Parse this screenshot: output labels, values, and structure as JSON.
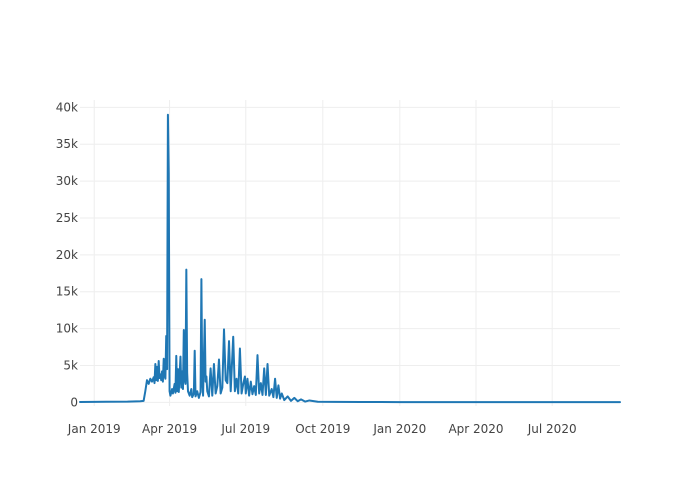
{
  "chart_data": {
    "type": "line",
    "title": "",
    "xlabel": "",
    "ylabel": "",
    "grid": true,
    "legend": "none",
    "xlim": [
      "2018-12-15",
      "2020-09-20"
    ],
    "ylim": [
      -500,
      41000
    ],
    "x_ticks": [
      {
        "value": "2019-01-01",
        "label": "Jan 2019"
      },
      {
        "value": "2019-04-01",
        "label": "Apr 2019"
      },
      {
        "value": "2019-07-01",
        "label": "Jul 2019"
      },
      {
        "value": "2019-10-01",
        "label": "Oct 2019"
      },
      {
        "value": "2020-01-01",
        "label": "Jan 2020"
      },
      {
        "value": "2020-04-01",
        "label": "Apr 2020"
      },
      {
        "value": "2020-07-01",
        "label": "Jul 2020"
      }
    ],
    "y_ticks": [
      {
        "value": 0,
        "label": "0"
      },
      {
        "value": 5000,
        "label": "5k"
      },
      {
        "value": 10000,
        "label": "10k"
      },
      {
        "value": 15000,
        "label": "15k"
      },
      {
        "value": 20000,
        "label": "20k"
      },
      {
        "value": 25000,
        "label": "25k"
      },
      {
        "value": 30000,
        "label": "30k"
      },
      {
        "value": 35000,
        "label": "35k"
      },
      {
        "value": 40000,
        "label": "40k"
      }
    ],
    "series": [
      {
        "color": "#1f77b4",
        "points": [
          [
            "2018-12-15",
            50
          ],
          [
            "2019-01-15",
            80
          ],
          [
            "2019-02-10",
            100
          ],
          [
            "2019-02-25",
            150
          ],
          [
            "2019-03-01",
            200
          ],
          [
            "2019-03-03",
            1500
          ],
          [
            "2019-03-05",
            3000
          ],
          [
            "2019-03-07",
            2500
          ],
          [
            "2019-03-09",
            3200
          ],
          [
            "2019-03-11",
            2800
          ],
          [
            "2019-03-13",
            3400
          ],
          [
            "2019-03-14",
            2600
          ],
          [
            "2019-03-15",
            5200
          ],
          [
            "2019-03-16",
            3000
          ],
          [
            "2019-03-17",
            4800
          ],
          [
            "2019-03-18",
            2900
          ],
          [
            "2019-03-19",
            5600
          ],
          [
            "2019-03-20",
            3300
          ],
          [
            "2019-03-21",
            3800
          ],
          [
            "2019-03-22",
            3000
          ],
          [
            "2019-03-23",
            4200
          ],
          [
            "2019-03-24",
            2800
          ],
          [
            "2019-03-25",
            5900
          ],
          [
            "2019-03-26",
            3600
          ],
          [
            "2019-03-27",
            3200
          ],
          [
            "2019-03-28",
            9000
          ],
          [
            "2019-03-29",
            4500
          ],
          [
            "2019-03-30",
            39000
          ],
          [
            "2019-03-31",
            31000
          ],
          [
            "2019-04-01",
            1500
          ],
          [
            "2019-04-02",
            900
          ],
          [
            "2019-04-04",
            1800
          ],
          [
            "2019-04-05",
            1200
          ],
          [
            "2019-04-07",
            2500
          ],
          [
            "2019-04-08",
            1300
          ],
          [
            "2019-04-09",
            6300
          ],
          [
            "2019-04-10",
            1500
          ],
          [
            "2019-04-11",
            4500
          ],
          [
            "2019-04-12",
            1400
          ],
          [
            "2019-04-14",
            6200
          ],
          [
            "2019-04-15",
            2000
          ],
          [
            "2019-04-16",
            4200
          ],
          [
            "2019-04-17",
            1800
          ],
          [
            "2019-04-18",
            9800
          ],
          [
            "2019-04-19",
            3000
          ],
          [
            "2019-04-20",
            2500
          ],
          [
            "2019-04-21",
            18000
          ],
          [
            "2019-04-22",
            4000
          ],
          [
            "2019-04-23",
            1500
          ],
          [
            "2019-04-25",
            900
          ],
          [
            "2019-04-27",
            1800
          ],
          [
            "2019-04-28",
            700
          ],
          [
            "2019-04-30",
            1200
          ],
          [
            "2019-05-01",
            7000
          ],
          [
            "2019-05-02",
            800
          ],
          [
            "2019-05-04",
            1500
          ],
          [
            "2019-05-06",
            600
          ],
          [
            "2019-05-08",
            1400
          ],
          [
            "2019-05-09",
            16700
          ],
          [
            "2019-05-10",
            3000
          ],
          [
            "2019-05-11",
            900
          ],
          [
            "2019-05-13",
            11200
          ],
          [
            "2019-05-14",
            2800
          ],
          [
            "2019-05-15",
            3500
          ],
          [
            "2019-05-16",
            1500
          ],
          [
            "2019-05-18",
            800
          ],
          [
            "2019-05-20",
            4600
          ],
          [
            "2019-05-22",
            900
          ],
          [
            "2019-05-24",
            5200
          ],
          [
            "2019-05-26",
            1200
          ],
          [
            "2019-05-28",
            2200
          ],
          [
            "2019-05-30",
            5800
          ],
          [
            "2019-06-01",
            1200
          ],
          [
            "2019-06-03",
            2000
          ],
          [
            "2019-06-05",
            9900
          ],
          [
            "2019-06-07",
            3000
          ],
          [
            "2019-06-09",
            2600
          ],
          [
            "2019-06-11",
            8300
          ],
          [
            "2019-06-13",
            1500
          ],
          [
            "2019-06-16",
            8900
          ],
          [
            "2019-06-18",
            1500
          ],
          [
            "2019-06-20",
            3200
          ],
          [
            "2019-06-22",
            1200
          ],
          [
            "2019-06-24",
            7300
          ],
          [
            "2019-06-26",
            1200
          ],
          [
            "2019-06-28",
            2500
          ],
          [
            "2019-06-30",
            3500
          ],
          [
            "2019-07-01",
            1200
          ],
          [
            "2019-07-03",
            3200
          ],
          [
            "2019-07-05",
            900
          ],
          [
            "2019-07-07",
            2800
          ],
          [
            "2019-07-09",
            1100
          ],
          [
            "2019-07-11",
            2200
          ],
          [
            "2019-07-13",
            1000
          ],
          [
            "2019-07-15",
            6400
          ],
          [
            "2019-07-17",
            1200
          ],
          [
            "2019-07-19",
            2600
          ],
          [
            "2019-07-21",
            1000
          ],
          [
            "2019-07-23",
            4600
          ],
          [
            "2019-07-25",
            1000
          ],
          [
            "2019-07-27",
            5200
          ],
          [
            "2019-07-29",
            900
          ],
          [
            "2019-08-01",
            1800
          ],
          [
            "2019-08-03",
            700
          ],
          [
            "2019-08-05",
            3200
          ],
          [
            "2019-08-07",
            600
          ],
          [
            "2019-08-09",
            2300
          ],
          [
            "2019-08-11",
            500
          ],
          [
            "2019-08-13",
            1200
          ],
          [
            "2019-08-16",
            300
          ],
          [
            "2019-08-20",
            800
          ],
          [
            "2019-08-24",
            200
          ],
          [
            "2019-08-28",
            600
          ],
          [
            "2019-09-01",
            150
          ],
          [
            "2019-09-05",
            400
          ],
          [
            "2019-09-10",
            100
          ],
          [
            "2019-09-15",
            250
          ],
          [
            "2019-09-25",
            80
          ],
          [
            "2019-10-15",
            60
          ],
          [
            "2019-11-15",
            40
          ],
          [
            "2020-01-01",
            30
          ],
          [
            "2020-04-01",
            20
          ],
          [
            "2020-07-01",
            20
          ],
          [
            "2020-09-20",
            20
          ]
        ]
      }
    ]
  }
}
